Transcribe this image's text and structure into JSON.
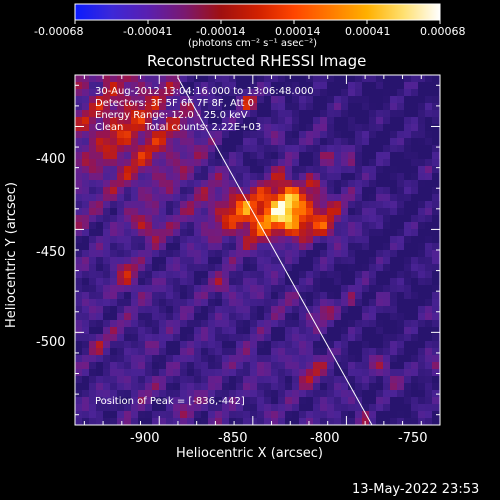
{
  "colorbar": {
    "ticks": [
      "-0.00068",
      "-0.00041",
      "-0.00014",
      "0.00014",
      "0.00041",
      "0.00068"
    ],
    "units_label": "(photons cm⁻² s⁻¹ asec⁻²)",
    "stops": [
      "#0a1bff",
      "#3c28d8",
      "#5a1fb0",
      "#7a1870",
      "#a01010",
      "#d02000",
      "#ff4500",
      "#ff7a00",
      "#ffb000",
      "#ffe070",
      "#ffffff"
    ]
  },
  "title": "Reconstructed RHESSI Image",
  "info": {
    "line1": "30-Aug-2012 13:04:16.000 to 13:06:48.000",
    "line2": "Detectors: 3F 5F 6F 7F 8F, Att 0",
    "line3": "Energy Range: 12.0 - 25.0 keV",
    "line4_a": "Clean",
    "line4_b": "Total counts: 2.22E+03"
  },
  "peak_text": "Position of Peak = [-836,-442]",
  "x_axis": {
    "label": "Heliocentric X (arcsec)",
    "ticks": [
      "-900",
      "-850",
      "-800",
      "-750"
    ]
  },
  "y_axis": {
    "label": "Heliocentric Y (arcsec)",
    "ticks": [
      "-400",
      "-450",
      "-500"
    ]
  },
  "footer_timestamp": "13-May-2022 23:53",
  "image": {
    "peak": [
      -836,
      -442
    ],
    "xlim": [
      -945,
      -750
    ],
    "ylim": [
      -545,
      -375
    ]
  }
}
